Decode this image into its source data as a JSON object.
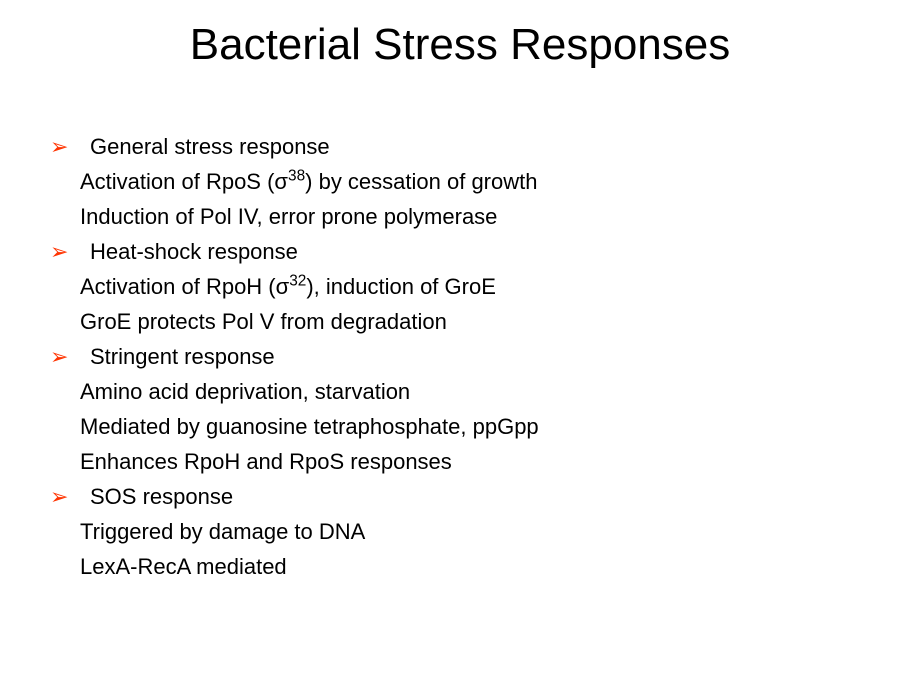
{
  "title": "Bacterial Stress Responses",
  "bullet_color": "#ff3300",
  "text_color": "#000000",
  "background_color": "#ffffff",
  "title_fontsize": 44,
  "body_fontsize": 22,
  "items": [
    {
      "heading": "General stress response",
      "lines": [
        {
          "prefix": "Activation of RpoS (σ",
          "sup": "38",
          "suffix": ") by cessation of growth"
        },
        {
          "prefix": "Induction of Pol IV, error prone polymerase",
          "sup": "",
          "suffix": ""
        }
      ]
    },
    {
      "heading": "Heat-shock response",
      "lines": [
        {
          "prefix": "Activation of RpoH (σ",
          "sup": "32",
          "suffix": "), induction of GroE"
        },
        {
          "prefix": "GroE protects Pol V from degradation",
          "sup": "",
          "suffix": ""
        }
      ]
    },
    {
      "heading": "Stringent response",
      "lines": [
        {
          "prefix": "Amino acid deprivation, starvation",
          "sup": "",
          "suffix": ""
        },
        {
          "prefix": "Mediated by guanosine tetraphosphate, ppGpp",
          "sup": "",
          "suffix": ""
        },
        {
          "prefix": "Enhances RpoH and RpoS responses",
          "sup": "",
          "suffix": ""
        }
      ]
    },
    {
      "heading": "SOS response",
      "lines": [
        {
          "prefix": "Triggered by damage to DNA",
          "sup": "",
          "suffix": ""
        },
        {
          "prefix": "LexA-RecA mediated",
          "sup": "",
          "suffix": ""
        }
      ]
    }
  ]
}
